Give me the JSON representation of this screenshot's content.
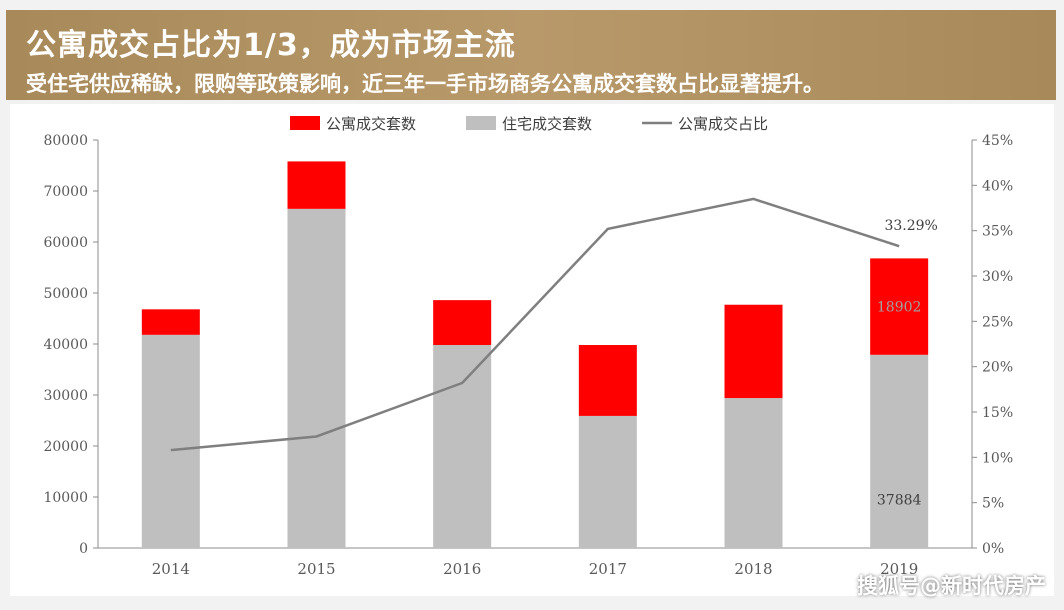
{
  "header": {
    "title": "公寓成交占比为1/3，成为市场主流",
    "subtitle": "受住宅供应稀缺，限购等政策影响，近三年一手市场商务公寓成交套数占比显著提升。"
  },
  "watermark": "搜狐号@新时代房产",
  "colors": {
    "apartment": "#ff0000",
    "residential": "#bfbfbf",
    "ratio_line": "#7f7f7f"
  },
  "chart_data": {
    "type": "bar",
    "stacked": true,
    "categories": [
      "2014",
      "2015",
      "2016",
      "2017",
      "2018",
      "2019"
    ],
    "series": [
      {
        "name": "住宅成交套数",
        "values": [
          41800,
          66500,
          39800,
          25900,
          29400,
          37884
        ]
      },
      {
        "name": "公寓成交套数",
        "values": [
          5000,
          9300,
          8800,
          13900,
          18300,
          18902
        ]
      }
    ],
    "line_series": {
      "name": "公寓成交占比",
      "values": [
        10.8,
        12.3,
        18.2,
        35.2,
        38.5,
        33.29
      ]
    },
    "data_labels": {
      "ratio_2019": "33.29%",
      "apartment_2019": "18902",
      "residential_2019": "37884"
    },
    "ylim": [
      0,
      80000
    ],
    "yticks": [
      "0",
      "10000",
      "20000",
      "30000",
      "40000",
      "50000",
      "60000",
      "70000",
      "80000"
    ],
    "y2lim": [
      0,
      45
    ],
    "y2ticks": [
      "0%",
      "5%",
      "10%",
      "15%",
      "20%",
      "25%",
      "30%",
      "35%",
      "40%",
      "45%"
    ],
    "legend_position": "top",
    "grid": false
  }
}
